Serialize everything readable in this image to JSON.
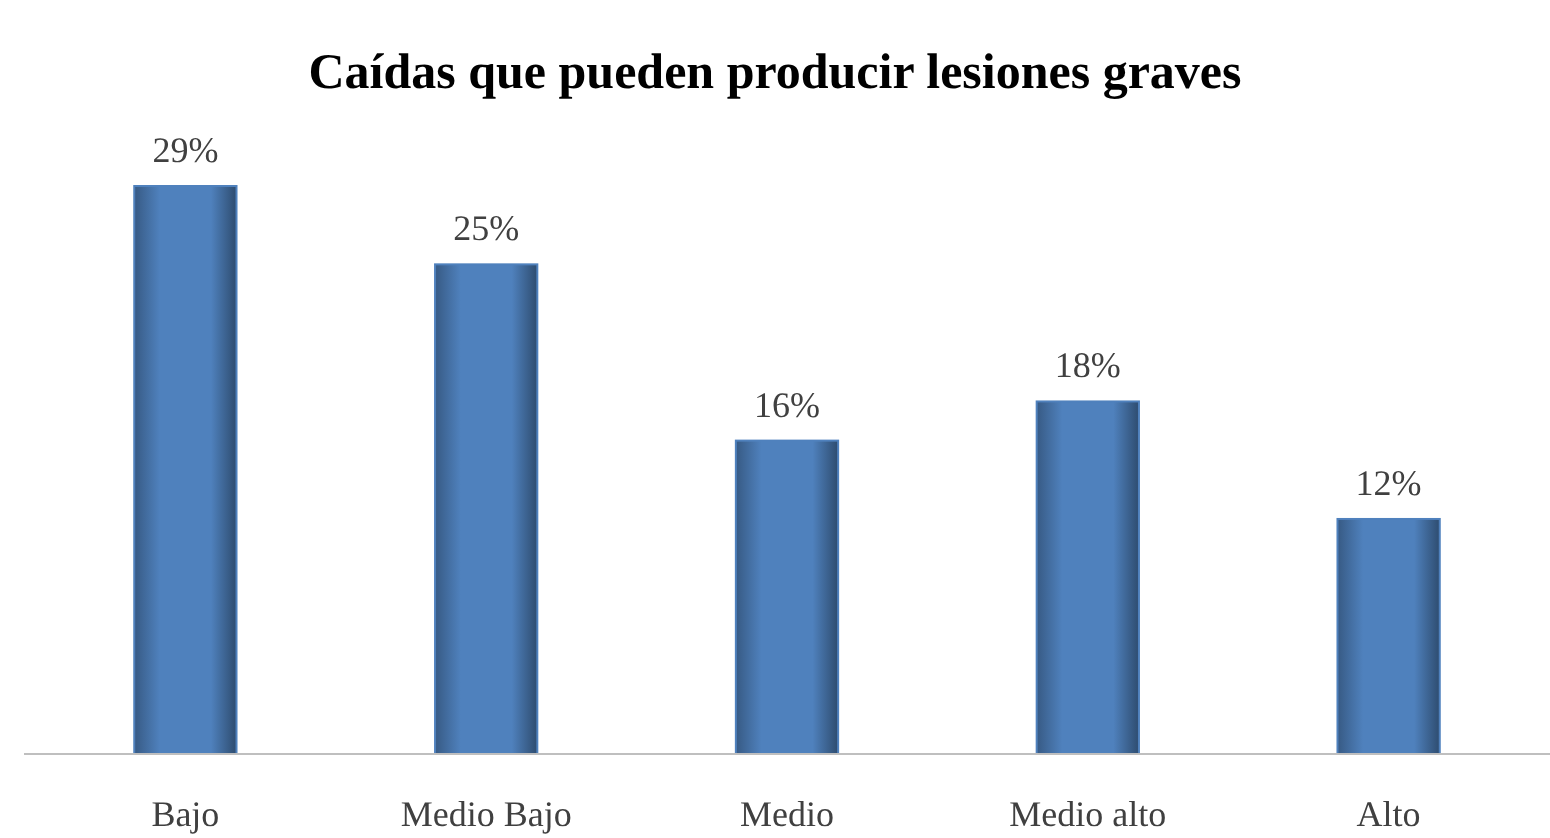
{
  "chart_data": {
    "type": "bar",
    "title": "Caídas que pueden producir lesiones graves",
    "categories": [
      "Bajo",
      "Medio Bajo",
      "Medio",
      "Medio alto",
      "Alto"
    ],
    "values": [
      29,
      25,
      16,
      18,
      12
    ],
    "value_labels": [
      "29%",
      "25%",
      "16%",
      "18%",
      "12%"
    ],
    "color": "#4f81bd"
  }
}
